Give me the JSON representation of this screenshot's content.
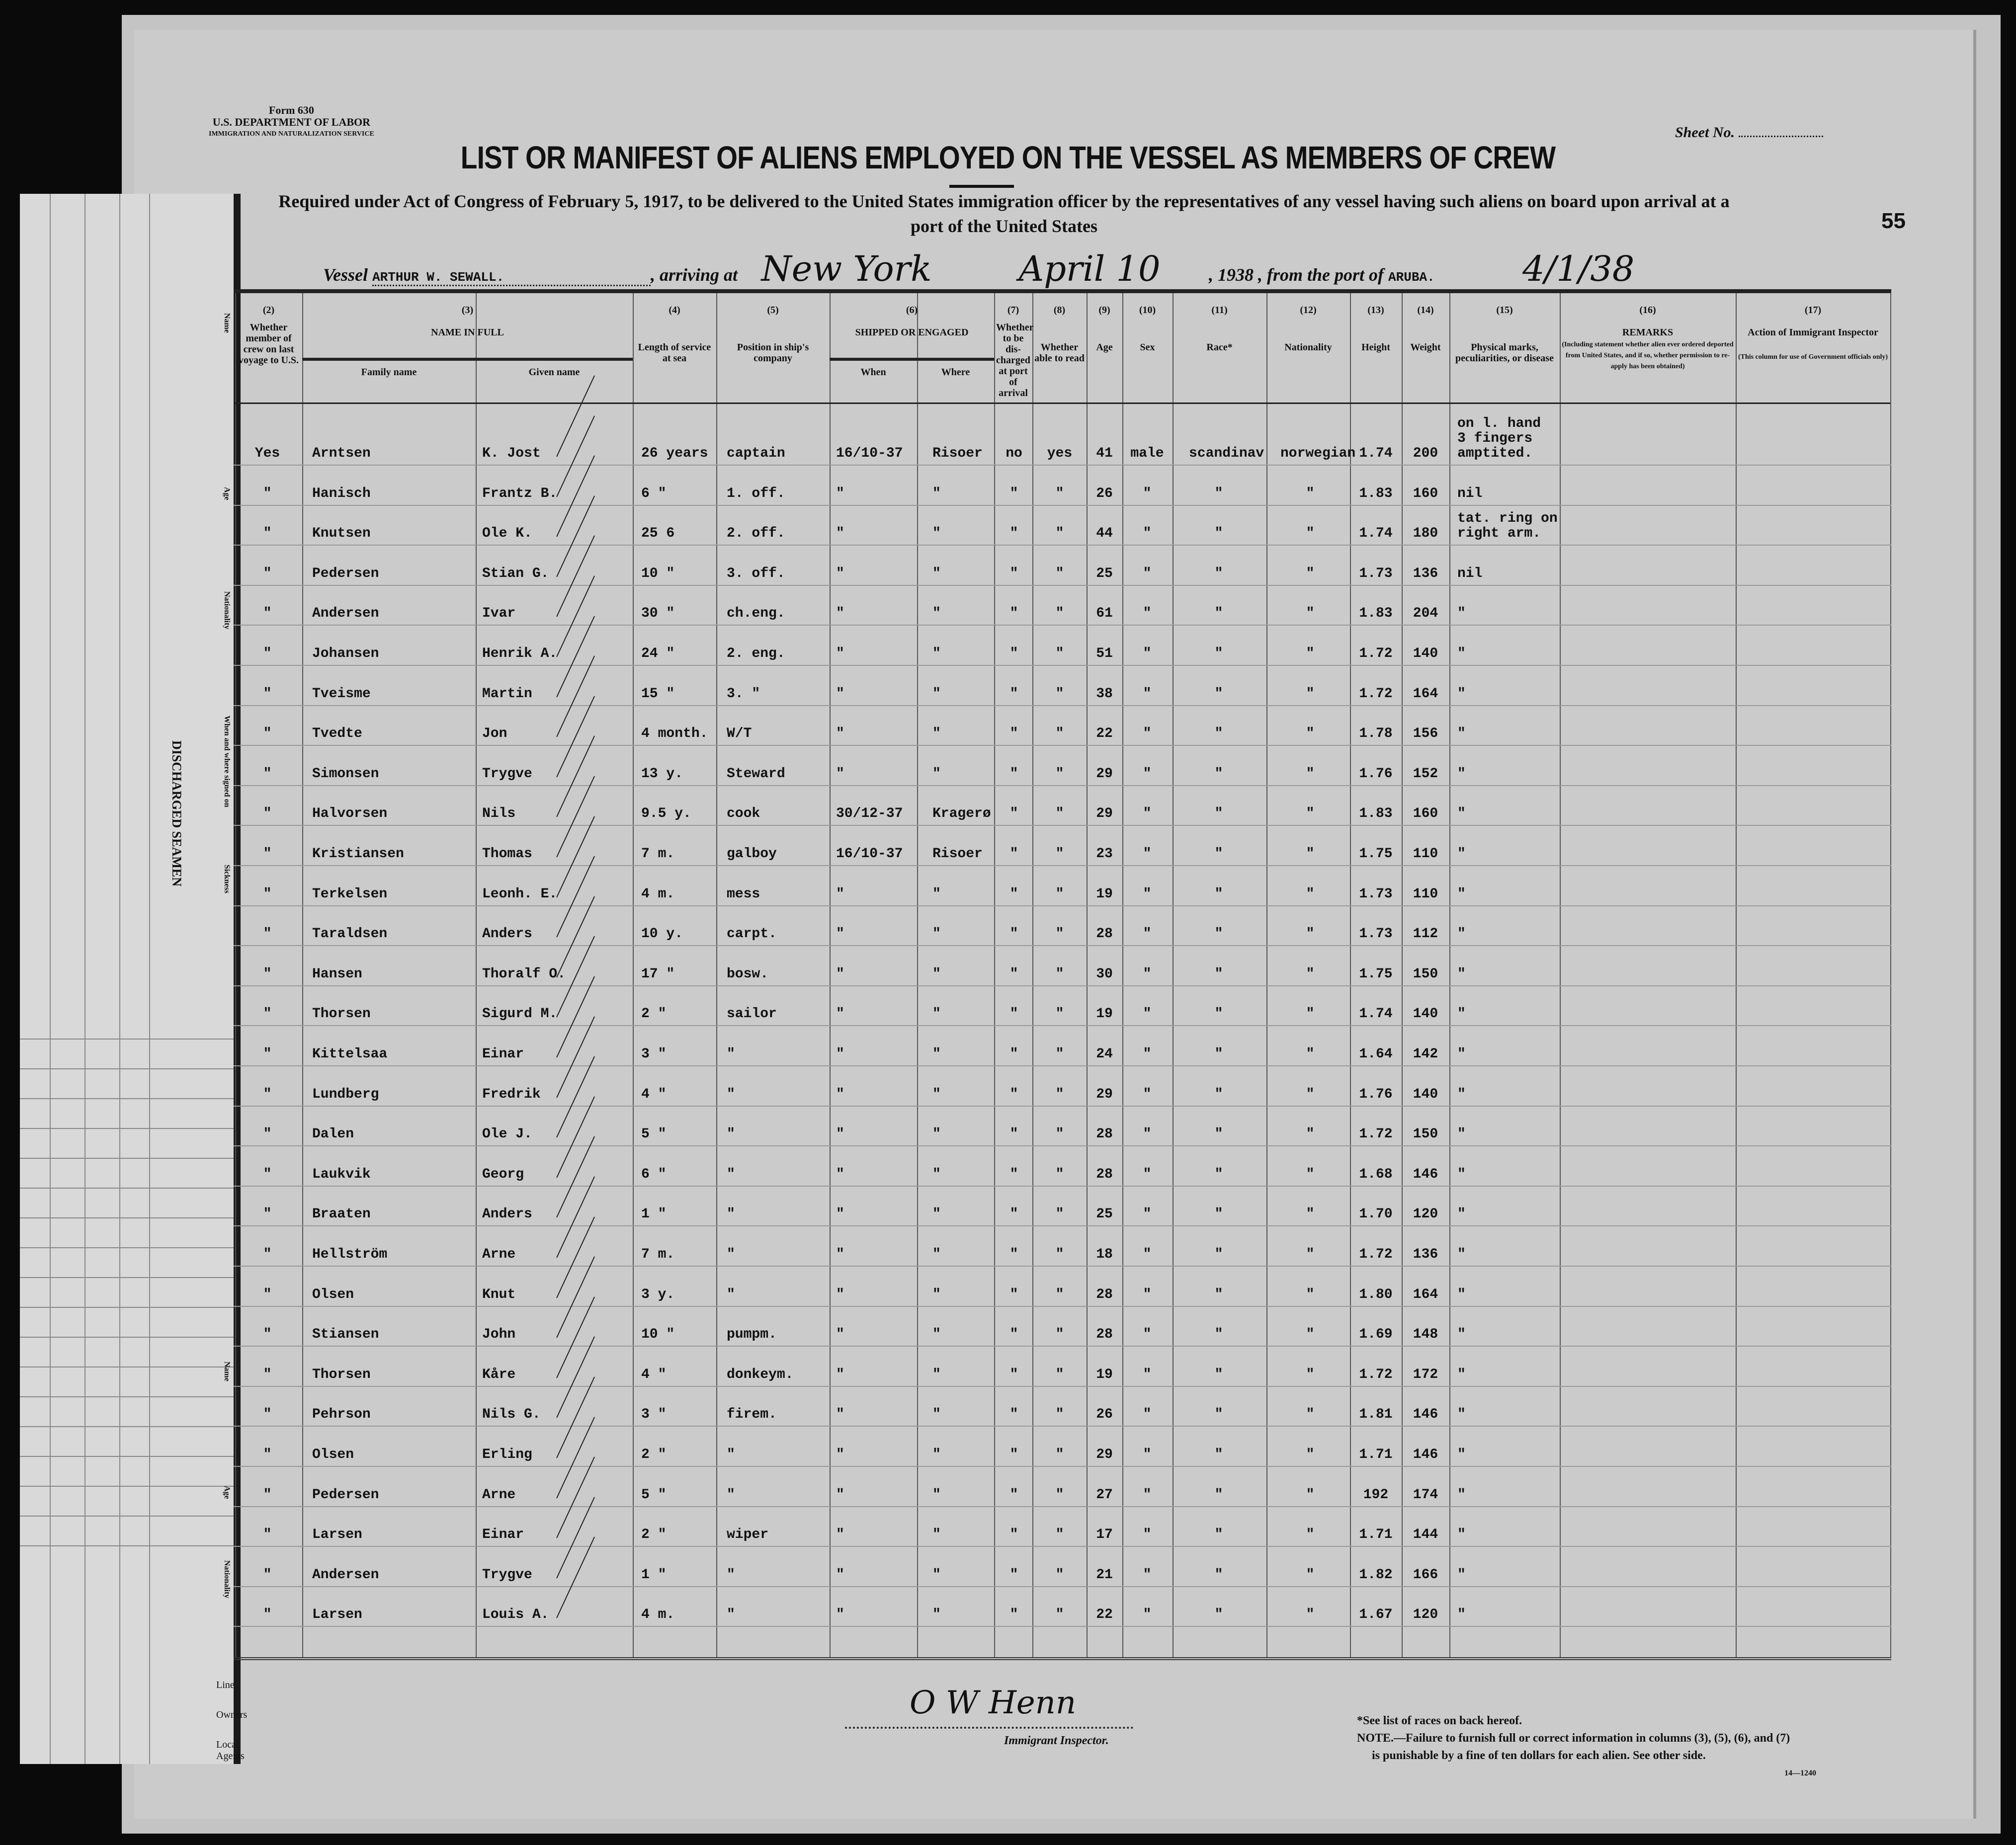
{
  "form": {
    "form_number": "Form 630",
    "department": "U.S. DEPARTMENT OF LABOR",
    "service": "IMMIGRATION AND NATURALIZATION SERVICE",
    "sheet_label": "Sheet No.",
    "sheet_number_handwritten": "55",
    "title": "LIST OR MANIFEST OF ALIENS EMPLOYED ON THE VESSEL AS MEMBERS OF CREW",
    "subtitle_line1": "Required under Act of Congress of February 5, 1917, to be delivered to the United States immigration officer by the representatives of any vessel having such aliens on board upon arrival at a",
    "subtitle_line2": "port of the United States"
  },
  "vessel_line": {
    "vessel_label": "Vessel",
    "vessel_name": "ARTHUR W. SEWALL.",
    "arriving_label": ", arriving at",
    "arriving_port": "New York",
    "date": "April 10",
    "year": ", 1938",
    "from_label": ", from the port of",
    "from_port": "ARUBA.",
    "departure_date": "4/1/38"
  },
  "headers": {
    "c2_num": "(2)",
    "c2": "Whether member of crew on last voyage to U.S.",
    "c3_num": "(3)",
    "c3": "NAME IN FULL",
    "c3a": "Family name",
    "c3b": "Given name",
    "c4_num": "(4)",
    "c4": "Length of service at sea",
    "c5_num": "(5)",
    "c5": "Position in ship's company",
    "c6_num": "(6)",
    "c6": "SHIPPED OR ENGAGED",
    "c6a": "When",
    "c6b": "Where",
    "c7_num": "(7)",
    "c7": "Whether to be dis-charged at port of arrival",
    "c8_num": "(8)",
    "c8": "Whether able to read",
    "c9_num": "(9)",
    "c9": "Age",
    "c10_num": "(10)",
    "c10": "Sex",
    "c11_num": "(11)",
    "c11": "Race*",
    "c12_num": "(12)",
    "c12": "Nationality",
    "c13_num": "(13)",
    "c13": "Height",
    "c14_num": "(14)",
    "c14": "Weight",
    "c15_num": "(15)",
    "c15": "Physical marks, peculiarities, or disease",
    "c16_num": "(16)",
    "c16": "REMARKS",
    "c16_note": "(Including statement whether alien ever ordered deported from United States, and if so, whether permission to re-apply has been obtained)",
    "c17_num": "(17)",
    "c17": "Action of Immigrant Inspector",
    "c17_note": "(This column for use of Government officials only)"
  },
  "rows": [
    [
      "Yes",
      "Arntsen",
      "K. Jost",
      "26 years",
      "captain",
      "16/10-37",
      "Risoer",
      "no",
      "yes",
      "41",
      "male",
      "scandinav",
      "norwegian",
      "1.74",
      "200",
      "on l. hand\n3 fingers\namptited."
    ],
    [
      "\"",
      "Hanisch",
      "Frantz B.",
      "6  \"",
      "1. off.",
      "\"",
      "\"",
      "\"",
      "\"",
      "26",
      "\"",
      "\"",
      "\"",
      "1.83",
      "160",
      "nil"
    ],
    [
      "\"",
      "Knutsen",
      "Ole K.",
      "25  6",
      "2. off.",
      "\"",
      "\"",
      "\"",
      "\"",
      "44",
      "\"",
      "\"",
      "\"",
      "1.74",
      "180",
      "tat. ring on\nright arm."
    ],
    [
      "\"",
      "Pedersen",
      "Stian G.",
      "10  \"",
      "3. off.",
      "\"",
      "\"",
      "\"",
      "\"",
      "25",
      "\"",
      "\"",
      "\"",
      "1.73",
      "136",
      "nil"
    ],
    [
      "\"",
      "Andersen",
      "Ivar",
      "30  \"",
      "ch.eng.",
      "\"",
      "\"",
      "\"",
      "\"",
      "61",
      "\"",
      "\"",
      "\"",
      "1.83",
      "204",
      "\""
    ],
    [
      "\"",
      "Johansen",
      "Henrik A.",
      "24  \"",
      "2. eng.",
      "\"",
      "\"",
      "\"",
      "\"",
      "51",
      "\"",
      "\"",
      "\"",
      "1.72",
      "140",
      "\""
    ],
    [
      "\"",
      "Tveisme",
      "Martin",
      "15  \"",
      "3.  \"",
      "\"",
      "\"",
      "\"",
      "\"",
      "38",
      "\"",
      "\"",
      "\"",
      "1.72",
      "164",
      "\""
    ],
    [
      "\"",
      "Tvedte",
      "Jon",
      "4 month.",
      "W/T",
      "\"",
      "\"",
      "\"",
      "\"",
      "22",
      "\"",
      "\"",
      "\"",
      "1.78",
      "156",
      "\""
    ],
    [
      "\"",
      "Simonsen",
      "Trygve",
      "13 y.",
      "Steward",
      "\"",
      "\"",
      "\"",
      "\"",
      "29",
      "\"",
      "\"",
      "\"",
      "1.76",
      "152",
      "\""
    ],
    [
      "\"",
      "Halvorsen",
      "Nils",
      "9.5 y.",
      "cook",
      "30/12-37",
      "Kragerø",
      "\"",
      "\"",
      "29",
      "\"",
      "\"",
      "\"",
      "1.83",
      "160",
      "\""
    ],
    [
      "\"",
      "Kristiansen",
      "Thomas",
      "7 m.",
      "galboy",
      "16/10-37",
      "Risoer",
      "\"",
      "\"",
      "23",
      "\"",
      "\"",
      "\"",
      "1.75",
      "110",
      "\""
    ],
    [
      "\"",
      "Terkelsen",
      "Leonh. E.",
      "4 m.",
      "mess",
      "\"",
      "\"",
      "\"",
      "\"",
      "19",
      "\"",
      "\"",
      "\"",
      "1.73",
      "110",
      "\""
    ],
    [
      "\"",
      "Taraldsen",
      "Anders",
      "10 y.",
      "carpt.",
      "\"",
      "\"",
      "\"",
      "\"",
      "28",
      "\"",
      "\"",
      "\"",
      "1.73",
      "112",
      "\""
    ],
    [
      "\"",
      "Hansen",
      "Thoralf O.",
      "17  \"",
      "bosw.",
      "\"",
      "\"",
      "\"",
      "\"",
      "30",
      "\"",
      "\"",
      "\"",
      "1.75",
      "150",
      "\""
    ],
    [
      "\"",
      "Thorsen",
      "Sigurd M.",
      "2  \"",
      "sailor",
      "\"",
      "\"",
      "\"",
      "\"",
      "19",
      "\"",
      "\"",
      "\"",
      "1.74",
      "140",
      "\""
    ],
    [
      "\"",
      "Kittelsaa",
      "Einar",
      "3  \"",
      "\"",
      "\"",
      "\"",
      "\"",
      "\"",
      "24",
      "\"",
      "\"",
      "\"",
      "1.64",
      "142",
      "\""
    ],
    [
      "\"",
      "Lundberg",
      "Fredrik",
      "4  \"",
      "\"",
      "\"",
      "\"",
      "\"",
      "\"",
      "29",
      "\"",
      "\"",
      "\"",
      "1.76",
      "140",
      "\""
    ],
    [
      "\"",
      "Dalen",
      "Ole J.",
      "5  \"",
      "\"",
      "\"",
      "\"",
      "\"",
      "\"",
      "28",
      "\"",
      "\"",
      "\"",
      "1.72",
      "150",
      "\""
    ],
    [
      "\"",
      "Laukvik",
      "Georg",
      "6  \"",
      "\"",
      "\"",
      "\"",
      "\"",
      "\"",
      "28",
      "\"",
      "\"",
      "\"",
      "1.68",
      "146",
      "\""
    ],
    [
      "\"",
      "Braaten",
      "Anders",
      "1  \"",
      "\"",
      "\"",
      "\"",
      "\"",
      "\"",
      "25",
      "\"",
      "\"",
      "\"",
      "1.70",
      "120",
      "\""
    ],
    [
      "\"",
      "Hellström",
      "Arne",
      "7 m.",
      "\"",
      "\"",
      "\"",
      "\"",
      "\"",
      "18",
      "\"",
      "\"",
      "\"",
      "1.72",
      "136",
      "\""
    ],
    [
      "\"",
      "Olsen",
      "Knut",
      "3 y.",
      "\"",
      "\"",
      "\"",
      "\"",
      "\"",
      "28",
      "\"",
      "\"",
      "\"",
      "1.80",
      "164",
      "\""
    ],
    [
      "\"",
      "Stiansen",
      "John",
      "10  \"",
      "pumpm.",
      "\"",
      "\"",
      "\"",
      "\"",
      "28",
      "\"",
      "\"",
      "\"",
      "1.69",
      "148",
      "\""
    ],
    [
      "\"",
      "Thorsen",
      "Kåre",
      "4  \"",
      "donkeym.",
      "\"",
      "\"",
      "\"",
      "\"",
      "19",
      "\"",
      "\"",
      "\"",
      "1.72",
      "172",
      "\""
    ],
    [
      "\"",
      "Pehrson",
      "Nils G.",
      "3  \"",
      "firem.",
      "\"",
      "\"",
      "\"",
      "\"",
      "26",
      "\"",
      "\"",
      "\"",
      "1.81",
      "146",
      "\""
    ],
    [
      "\"",
      "Olsen",
      "Erling",
      "2  \"",
      "\"",
      "\"",
      "\"",
      "\"",
      "\"",
      "29",
      "\"",
      "\"",
      "\"",
      "1.71",
      "146",
      "\""
    ],
    [
      "\"",
      "Pedersen",
      "Arne",
      "5  \"",
      "\"",
      "\"",
      "\"",
      "\"",
      "\"",
      "27",
      "\"",
      "\"",
      "\"",
      "192",
      "174",
      "\""
    ],
    [
      "\"",
      "Larsen",
      "Einar",
      "2  \"",
      "wiper",
      "\"",
      "\"",
      "\"",
      "\"",
      "17",
      "\"",
      "\"",
      "\"",
      "1.71",
      "144",
      "\""
    ],
    [
      "\"",
      "Andersen",
      "Trygve",
      "1  \"",
      "\"",
      "\"",
      "\"",
      "\"",
      "\"",
      "21",
      "\"",
      "\"",
      "\"",
      "1.82",
      "166",
      "\""
    ],
    [
      "\"",
      "Larsen",
      "Louis A.",
      "4 m.",
      "\"",
      "\"",
      "\"",
      "\"",
      "\"",
      "22",
      "\"",
      "\"",
      "\"",
      "1.67",
      "120",
      "\""
    ]
  ],
  "stub": {
    "title": "DISCHARGED SEAMEN",
    "labels": [
      "Name",
      "Age",
      "Nationality",
      "When and where signed on",
      "Sickness",
      "Name",
      "Age",
      "Nationality"
    ],
    "footer_labels": [
      "Line",
      "Owners",
      "Local Agents"
    ]
  },
  "footer": {
    "signature": "O W Henn",
    "signature_label": "Immigrant Inspector.",
    "race_note": "*See list of races on back hereof.",
    "note_line1": "NOTE.—Failure to furnish full or correct information in columns (3), (5), (6), and (7)",
    "note_line2": "is punishable by a fine of ten dollars for each alien.   See other side.",
    "form_code": "14—1240"
  }
}
